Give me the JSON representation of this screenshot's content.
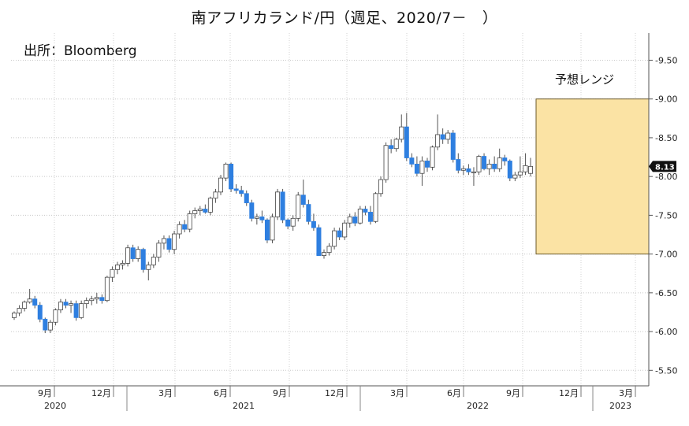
{
  "chart_data": {
    "type": "candlestick",
    "title": "南アフリカランド/円（週足、2020/7－　）",
    "source": "出所：Bloomberg",
    "ylim": [
      5.3,
      9.85
    ],
    "y_ticks": [
      "5.50",
      "6.00",
      "6.50",
      "7.00",
      "7.50",
      "8.00",
      "8.50",
      "9.00",
      "9.50"
    ],
    "x_month_ticks": [
      "9月",
      "12月",
      "3月",
      "6月",
      "9月",
      "12月",
      "3月",
      "6月",
      "9月",
      "12月",
      "3月"
    ],
    "x_year_labels": [
      "2020",
      "2021",
      "2022",
      "2023"
    ],
    "last_value": "8.13",
    "forecast_band": {
      "label": "予想レンジ",
      "low": 7.0,
      "high": 9.0,
      "from": "2022-10",
      "to": "2023-03"
    },
    "colors": {
      "up_body": "#ffffff",
      "down_body": "#2e7fe0",
      "wick": "#555555",
      "band_fill": "#fbe3a4",
      "band_stroke": "#6b5a2a",
      "last_badge": "#111111"
    },
    "candles": [
      [
        6.18,
        6.26,
        6.15,
        6.24
      ],
      [
        6.24,
        6.34,
        6.2,
        6.3
      ],
      [
        6.3,
        6.4,
        6.26,
        6.38
      ],
      [
        6.38,
        6.55,
        6.36,
        6.42
      ],
      [
        6.42,
        6.46,
        6.3,
        6.34
      ],
      [
        6.34,
        6.38,
        6.12,
        6.16
      ],
      [
        6.16,
        6.18,
        5.98,
        6.02
      ],
      [
        6.02,
        6.15,
        5.98,
        6.12
      ],
      [
        6.12,
        6.3,
        6.08,
        6.28
      ],
      [
        6.28,
        6.42,
        6.24,
        6.38
      ],
      [
        6.38,
        6.42,
        6.3,
        6.34
      ],
      [
        6.34,
        6.4,
        6.24,
        6.36
      ],
      [
        6.36,
        6.4,
        6.14,
        6.18
      ],
      [
        6.18,
        6.4,
        6.16,
        6.36
      ],
      [
        6.36,
        6.44,
        6.3,
        6.4
      ],
      [
        6.4,
        6.46,
        6.34,
        6.42
      ],
      [
        6.42,
        6.5,
        6.36,
        6.44
      ],
      [
        6.44,
        6.48,
        6.36,
        6.4
      ],
      [
        6.4,
        6.72,
        6.38,
        6.7
      ],
      [
        6.7,
        6.84,
        6.64,
        6.8
      ],
      [
        6.8,
        6.9,
        6.74,
        6.86
      ],
      [
        6.86,
        6.92,
        6.8,
        6.88
      ],
      [
        6.88,
        7.12,
        6.84,
        7.08
      ],
      [
        7.08,
        7.12,
        6.9,
        6.94
      ],
      [
        6.94,
        7.1,
        6.9,
        7.06
      ],
      [
        7.06,
        7.08,
        6.76,
        6.8
      ],
      [
        6.8,
        6.9,
        6.66,
        6.86
      ],
      [
        6.86,
        7.0,
        6.82,
        6.96
      ],
      [
        6.96,
        7.18,
        6.9,
        7.14
      ],
      [
        7.14,
        7.24,
        7.06,
        7.2
      ],
      [
        7.2,
        7.24,
        7.02,
        7.06
      ],
      [
        7.06,
        7.3,
        7.0,
        7.26
      ],
      [
        7.26,
        7.42,
        7.2,
        7.38
      ],
      [
        7.38,
        7.44,
        7.28,
        7.32
      ],
      [
        7.32,
        7.56,
        7.28,
        7.52
      ],
      [
        7.52,
        7.6,
        7.46,
        7.56
      ],
      [
        7.56,
        7.62,
        7.5,
        7.58
      ],
      [
        7.58,
        7.64,
        7.52,
        7.54
      ],
      [
        7.54,
        7.74,
        7.5,
        7.72
      ],
      [
        7.72,
        7.84,
        7.66,
        7.8
      ],
      [
        7.8,
        8.02,
        7.76,
        7.98
      ],
      [
        7.98,
        8.18,
        7.94,
        8.16
      ],
      [
        8.16,
        8.18,
        7.8,
        7.84
      ],
      [
        7.84,
        7.9,
        7.78,
        7.82
      ],
      [
        7.82,
        7.88,
        7.74,
        7.78
      ],
      [
        7.78,
        7.82,
        7.62,
        7.66
      ],
      [
        7.66,
        7.7,
        7.42,
        7.46
      ],
      [
        7.46,
        7.52,
        7.38,
        7.48
      ],
      [
        7.48,
        7.56,
        7.4,
        7.44
      ],
      [
        7.44,
        7.46,
        7.14,
        7.18
      ],
      [
        7.18,
        7.52,
        7.14,
        7.48
      ],
      [
        7.48,
        7.84,
        7.44,
        7.8
      ],
      [
        7.8,
        7.84,
        7.4,
        7.44
      ],
      [
        7.44,
        7.46,
        7.32,
        7.36
      ],
      [
        7.36,
        7.5,
        7.3,
        7.46
      ],
      [
        7.46,
        7.8,
        7.42,
        7.76
      ],
      [
        7.76,
        7.96,
        7.6,
        7.64
      ],
      [
        7.64,
        7.7,
        7.38,
        7.42
      ],
      [
        7.42,
        7.52,
        7.3,
        7.34
      ],
      [
        7.34,
        7.38,
        7.0,
        6.98
      ],
      [
        6.98,
        7.06,
        6.94,
        7.02
      ],
      [
        7.02,
        7.14,
        6.98,
        7.1
      ],
      [
        7.1,
        7.34,
        7.06,
        7.3
      ],
      [
        7.3,
        7.34,
        7.18,
        7.22
      ],
      [
        7.22,
        7.44,
        7.18,
        7.4
      ],
      [
        7.4,
        7.52,
        7.34,
        7.48
      ],
      [
        7.48,
        7.54,
        7.36,
        7.4
      ],
      [
        7.4,
        7.62,
        7.38,
        7.58
      ],
      [
        7.58,
        7.62,
        7.5,
        7.54
      ],
      [
        7.54,
        7.62,
        7.38,
        7.42
      ],
      [
        7.42,
        7.8,
        7.4,
        7.78
      ],
      [
        7.78,
        8.0,
        7.74,
        7.96
      ],
      [
        7.96,
        8.44,
        7.92,
        8.4
      ],
      [
        8.4,
        8.48,
        8.3,
        8.36
      ],
      [
        8.36,
        8.5,
        8.32,
        8.48
      ],
      [
        8.48,
        8.8,
        8.44,
        8.64
      ],
      [
        8.64,
        8.82,
        8.2,
        8.24
      ],
      [
        8.24,
        8.3,
        8.12,
        8.16
      ],
      [
        8.16,
        8.26,
        8.0,
        8.04
      ],
      [
        8.04,
        8.26,
        7.88,
        8.2
      ],
      [
        8.2,
        8.24,
        8.06,
        8.12
      ],
      [
        8.12,
        8.4,
        8.08,
        8.38
      ],
      [
        8.38,
        8.8,
        8.34,
        8.54
      ],
      [
        8.54,
        8.62,
        8.42,
        8.48
      ],
      [
        8.48,
        8.6,
        8.42,
        8.56
      ],
      [
        8.56,
        8.6,
        8.18,
        8.22
      ],
      [
        8.22,
        8.3,
        8.04,
        8.08
      ],
      [
        8.08,
        8.14,
        8.02,
        8.1
      ],
      [
        8.1,
        8.16,
        8.02,
        8.06
      ],
      [
        8.06,
        8.12,
        7.88,
        8.06
      ],
      [
        8.06,
        8.28,
        8.02,
        8.26
      ],
      [
        8.26,
        8.3,
        8.08,
        8.1
      ],
      [
        8.1,
        8.22,
        8.02,
        8.16
      ],
      [
        8.16,
        8.26,
        8.06,
        8.1
      ],
      [
        8.1,
        8.36,
        8.06,
        8.24
      ],
      [
        8.24,
        8.28,
        8.14,
        8.2
      ],
      [
        8.2,
        8.22,
        7.94,
        7.98
      ],
      [
        7.98,
        8.06,
        7.94,
        8.02
      ],
      [
        8.02,
        8.26,
        7.98,
        8.06
      ],
      [
        8.06,
        8.3,
        8.02,
        8.14
      ],
      [
        8.04,
        8.24,
        8.0,
        8.13
      ]
    ]
  }
}
